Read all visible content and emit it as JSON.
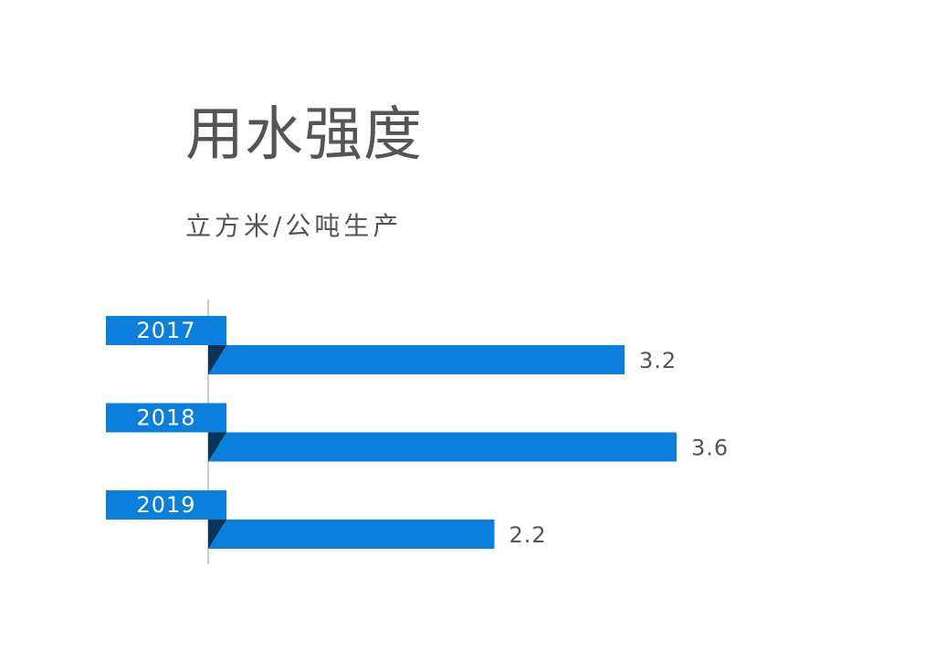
{
  "chart_data": {
    "type": "bar",
    "orientation": "horizontal",
    "title": "用水强度",
    "subtitle": "立方米/公吨生产",
    "categories": [
      "2017",
      "2018",
      "2019"
    ],
    "values": [
      3.2,
      3.6,
      2.2
    ],
    "value_labels": [
      "3.2",
      "3.6",
      "2.2"
    ],
    "xlim": [
      0,
      4
    ],
    "grid": false,
    "legend": "none",
    "colors": {
      "bar": "#0a7fdc",
      "fold": "#0c3358",
      "axis": "#999999",
      "label_text": "#ffffff",
      "value_text": "#555555"
    }
  }
}
